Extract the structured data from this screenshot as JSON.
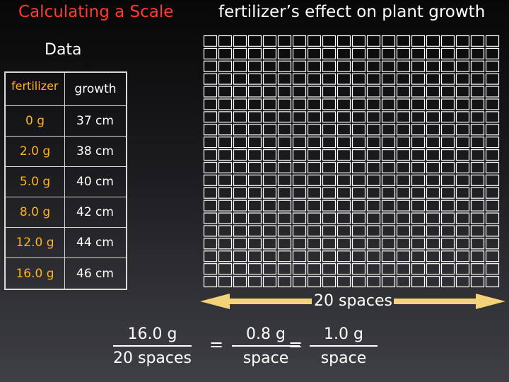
{
  "slide": {
    "title": "Calculating a Scale",
    "chart_title": "fertilizer’s effect on plant growth",
    "data_label": "Data"
  },
  "table": {
    "headers": [
      "fertilizer",
      "growth"
    ],
    "rows": [
      {
        "fertilizer": "0 g",
        "growth": "37 cm"
      },
      {
        "fertilizer": "2.0 g",
        "growth": "38 cm"
      },
      {
        "fertilizer": "5.0 g",
        "growth": "40 cm"
      },
      {
        "fertilizer": "8.0 g",
        "growth": "42 cm"
      },
      {
        "fertilizer": "12.0 g",
        "growth": "44 cm"
      },
      {
        "fertilizer": "16.0 g",
        "growth": "46 cm"
      }
    ]
  },
  "grid": {
    "columns": 20,
    "rows": 20
  },
  "scale": {
    "spaces_label": "20 spaces",
    "fraction1_num": "16.0 g",
    "fraction1_den": "20 spaces",
    "eq1": "=",
    "fraction2_num": "0.8 g",
    "fraction2_den": "space",
    "eq2": "=",
    "fraction3_num": "1.0 g",
    "fraction3_den": "space"
  },
  "colors": {
    "title": "#ff3b2f",
    "fertilizer_values": "#ffb21a",
    "arrow": "#f3d27a"
  }
}
